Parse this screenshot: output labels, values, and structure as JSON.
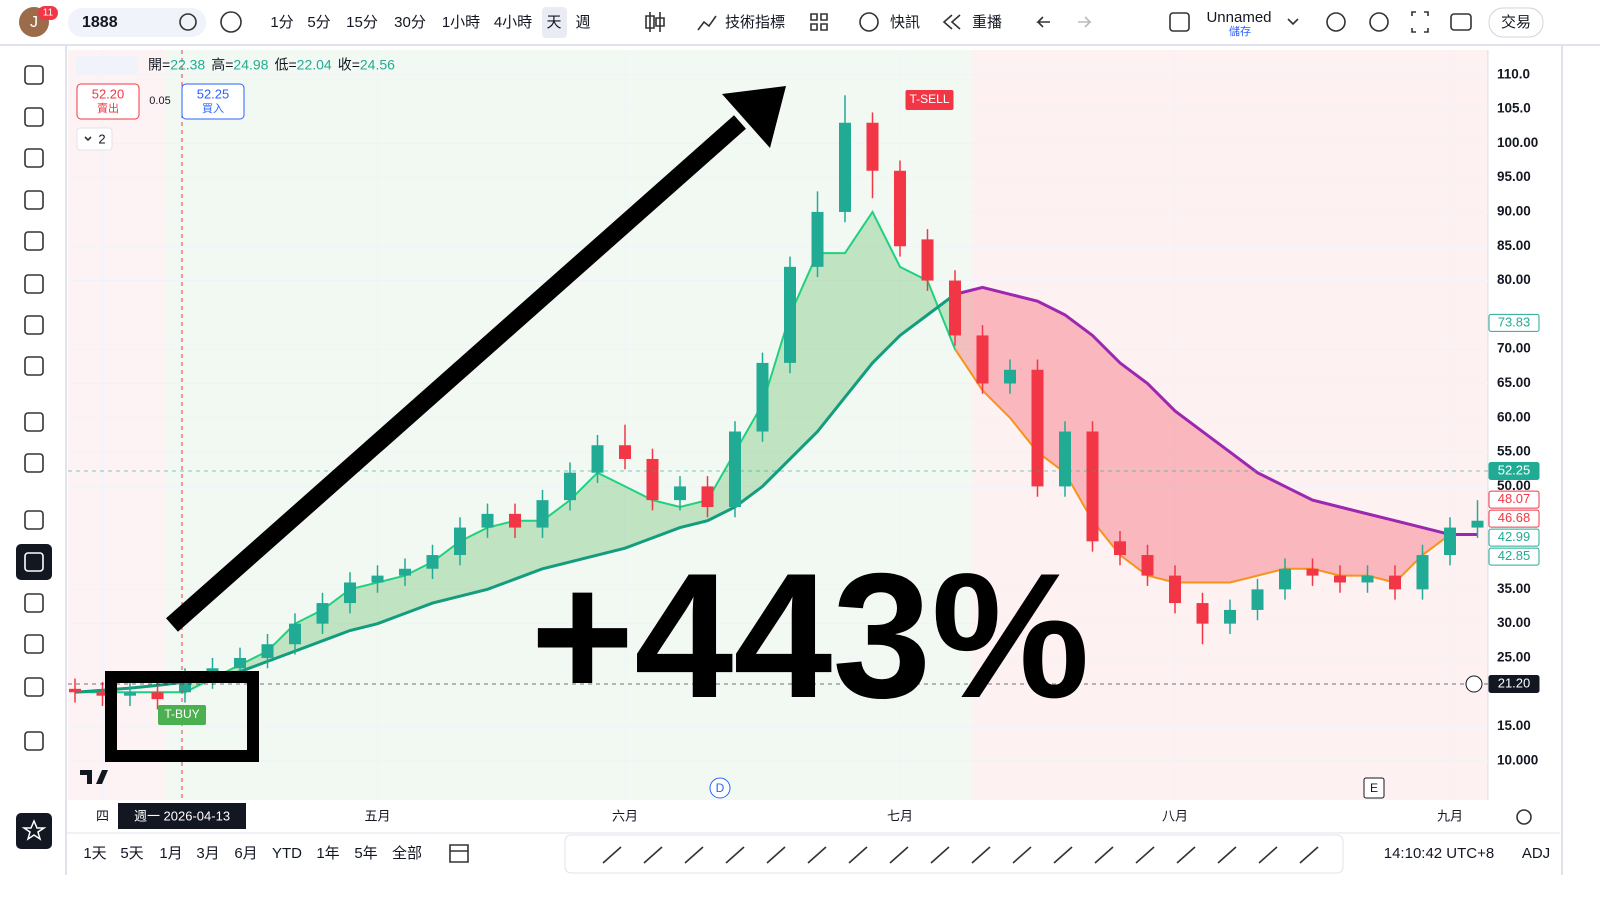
{
  "toolbar": {
    "avatar": "J",
    "badge": "11",
    "symbol": "1888",
    "intervals": [
      "1分",
      "5分",
      "15分",
      "30分",
      "1小時",
      "4小時",
      "天",
      "週"
    ],
    "indicators": "技術指標",
    "alerts": "快訊",
    "replay": "重播",
    "layout_name": "Unnamed",
    "save": "儲存",
    "trade": "交易"
  },
  "quote": {
    "ohlc": [
      {
        "label": "開=",
        "value": 22.38
      },
      {
        "label": "高=",
        "value": 24.98
      },
      {
        "label": "低=",
        "value": 22.04
      },
      {
        "label": "收=",
        "value": 24.56
      }
    ],
    "sell": {
      "price": "52.20",
      "label": "賣出"
    },
    "spread": "0.05",
    "buy": {
      "price": "52.25",
      "label": "買入"
    },
    "indicator_count": "2"
  },
  "chart_data": {
    "type": "candlestick",
    "categories": [
      null,
      "四",
      null,
      null,
      null,
      null,
      null,
      null,
      null,
      null,
      null,
      "五月",
      null,
      null,
      null,
      null,
      null,
      null,
      null,
      null,
      "六月",
      null,
      null,
      null,
      null,
      null,
      null,
      null,
      null,
      null,
      "七月",
      null,
      null,
      null,
      null,
      null,
      null,
      null,
      null,
      null,
      "八月",
      null,
      null,
      null,
      null,
      null,
      null,
      null,
      null,
      null,
      "九月",
      null
    ],
    "open": [
      20.5,
      20,
      19.5,
      20,
      20,
      22,
      23.5,
      25,
      27,
      30,
      33,
      36,
      37,
      38,
      40,
      44,
      46,
      44,
      48,
      52,
      56,
      54,
      48,
      50,
      47,
      58,
      68,
      82,
      90,
      103,
      96,
      86,
      80,
      72,
      65,
      67,
      50,
      58,
      42,
      40,
      37,
      33,
      30,
      32,
      35,
      38,
      37,
      36,
      37,
      35,
      40,
      44
    ],
    "high": [
      22,
      21.5,
      21.5,
      21.5,
      23.5,
      25,
      26.5,
      28.5,
      31.5,
      34.5,
      37.5,
      38.5,
      39.5,
      41.5,
      45.5,
      47.5,
      47.5,
      49.5,
      53.5,
      57.5,
      59,
      55.5,
      51.5,
      51.5,
      59.5,
      69.5,
      83.5,
      93,
      107,
      104.5,
      97.5,
      87.5,
      81.5,
      73.5,
      68.5,
      68.5,
      59.5,
      59.5,
      43.5,
      41.5,
      38.5,
      34.5,
      33.5,
      36.5,
      39.5,
      39.5,
      38.5,
      38.5,
      38.5,
      41.5,
      45.5,
      48
    ],
    "low": [
      18.5,
      18,
      18,
      17.5,
      18.5,
      20.5,
      22,
      23.5,
      25.5,
      28.5,
      31.5,
      34.5,
      35.5,
      36.5,
      38.5,
      42.5,
      42.5,
      42.5,
      46.5,
      50.5,
      52.5,
      46.5,
      46.5,
      45.5,
      45.5,
      56.5,
      66.5,
      80.5,
      88.5,
      92,
      83.5,
      78.5,
      70.5,
      63.5,
      63.5,
      48.5,
      48.5,
      40.5,
      38.5,
      35.5,
      31.5,
      27,
      28.5,
      30.5,
      33.5,
      35.5,
      34.5,
      34.5,
      33.5,
      33.5,
      38.5,
      42.5
    ],
    "close": [
      20,
      19.5,
      20,
      19,
      22,
      23.5,
      25,
      27,
      30,
      33,
      36,
      37,
      38,
      40,
      44,
      46,
      44,
      48,
      52,
      56,
      54,
      48,
      50,
      47,
      58,
      68,
      82,
      90,
      103,
      96,
      85,
      80,
      72,
      65,
      67,
      50,
      58,
      42,
      40,
      37,
      33,
      30,
      32,
      35,
      38,
      37,
      36,
      37,
      35,
      40,
      44,
      45
    ],
    "up_color": "#22ab94",
    "down_color": "#f23645",
    "lines": [
      {
        "color": "#1fd17f",
        "color_after": "#f7931a",
        "values": [
          20,
          20,
          20,
          20,
          20,
          22,
          24,
          26,
          30,
          32,
          35,
          36,
          37,
          39,
          42,
          44,
          45,
          45,
          48,
          52,
          50,
          48,
          47,
          48,
          55,
          62,
          75,
          84,
          84,
          90,
          82,
          80,
          70,
          64,
          60,
          55,
          52,
          45,
          40,
          37,
          36,
          36,
          36,
          37,
          38,
          38,
          37,
          37,
          36,
          40,
          43,
          43
        ]
      },
      {
        "color": "#139c7e",
        "color_after": "#9c27b0",
        "values": [
          20,
          20.3,
          20.6,
          21,
          21.5,
          22,
          23,
          24.5,
          26,
          27.5,
          29,
          30,
          31.5,
          33,
          34,
          35,
          36.5,
          38,
          39,
          40,
          41,
          42.5,
          44,
          45,
          47,
          50,
          54,
          58,
          63,
          68,
          72,
          75,
          78,
          79,
          78,
          77,
          75,
          72,
          68,
          65,
          61,
          58,
          55,
          52,
          50,
          48,
          47,
          46,
          45,
          44,
          43,
          43
        ]
      }
    ],
    "ylim": [
      4.3,
      113.6
    ],
    "yticks": [
      {
        "value": 110,
        "label": "110.0"
      },
      {
        "value": 105,
        "label": "105.0"
      },
      {
        "value": 100,
        "label": "100.00"
      },
      {
        "value": 95,
        "label": "95.00"
      },
      {
        "value": 90,
        "label": "90.00"
      },
      {
        "value": 85,
        "label": "85.00"
      },
      {
        "value": 80,
        "label": "80.00"
      },
      {
        "value": 70,
        "label": "70.00"
      },
      {
        "value": 65,
        "label": "65.00"
      },
      {
        "value": 60,
        "label": "60.00"
      },
      {
        "value": 55,
        "label": "55.00"
      },
      {
        "value": 50,
        "label": "50.00"
      },
      {
        "value": 35,
        "label": "35.00"
      },
      {
        "value": 30,
        "label": "30.00"
      },
      {
        "value": 25,
        "label": "25.00"
      },
      {
        "value": 15,
        "label": "15.00"
      },
      {
        "value": 10,
        "label": "10.000"
      }
    ],
    "price_labels": [
      {
        "value": 73.83,
        "color": "#22ab94",
        "filled": false
      },
      {
        "value": 52.25,
        "color": "#22ab94",
        "filled": true
      },
      {
        "value": 48.07,
        "color": "#f23645",
        "filled": false
      },
      {
        "value": 46.68,
        "color": "#f23645",
        "filled": false
      },
      {
        "value": 42.99,
        "color": "#22ab94",
        "filled": false
      },
      {
        "value": 42.85,
        "color": "#22ab94",
        "filled": false
      },
      {
        "value": 21.2,
        "label": "21.20",
        "color": "#131722",
        "filled": true
      }
    ],
    "signals": [
      {
        "label": "T-BUY",
        "index": 4,
        "color": "#4caf50"
      },
      {
        "label": "T-SELL",
        "index": 31,
        "color": "#f23645"
      }
    ],
    "annotation": "+443%",
    "crosshair_label": "週一 2026-04-13",
    "markers": [
      "D",
      "E"
    ]
  },
  "bottom": {
    "ranges": [
      "1天",
      "5天",
      "1月",
      "3月",
      "6月",
      "YTD",
      "1年",
      "5年",
      "全部"
    ],
    "time": "14:10:42 UTC+8",
    "adj": "ADJ"
  }
}
